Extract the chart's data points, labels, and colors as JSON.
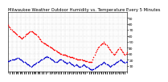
{
  "title": "Milwaukee Weather Outdoor Humidity vs. Temperature Every 5 Minutes",
  "background_color": "#ffffff",
  "grid_color": "#c8c8c8",
  "fig_bg": "#ffffff",
  "temp_color": "#ff0000",
  "humidity_color": "#0000cc",
  "ylim": [
    0,
    100
  ],
  "xlim": [
    0,
    1
  ],
  "temp_data": [
    78,
    76,
    74,
    72,
    70,
    68,
    67,
    66,
    65,
    63,
    62,
    60,
    59,
    58,
    57,
    56,
    57,
    58,
    60,
    62,
    63,
    64,
    65,
    66,
    67,
    68,
    67,
    66,
    65,
    64,
    63,
    62,
    60,
    58,
    56,
    54,
    52,
    50,
    49,
    48,
    47,
    46,
    45,
    44,
    43,
    42,
    41,
    40,
    39,
    38,
    37,
    36,
    35,
    34,
    33,
    32,
    31,
    30,
    30,
    29,
    29,
    28,
    28,
    27,
    27,
    26,
    26,
    25,
    25,
    24,
    24,
    23,
    23,
    22,
    22,
    21,
    21,
    20,
    20,
    20,
    20,
    19,
    19,
    19,
    18,
    18,
    18,
    17,
    17,
    17,
    17,
    16,
    20,
    24,
    28,
    32,
    35,
    38,
    40,
    42,
    44,
    46,
    47,
    48,
    50,
    48,
    46,
    44,
    42,
    40,
    38,
    36,
    34,
    32,
    30,
    28,
    30,
    32,
    34,
    36,
    38,
    40,
    38,
    36,
    34,
    32,
    30,
    28,
    30,
    32
  ],
  "humidity_data": [
    18,
    18,
    19,
    19,
    20,
    20,
    21,
    21,
    22,
    22,
    23,
    23,
    22,
    21,
    20,
    19,
    18,
    17,
    16,
    15,
    14,
    13,
    12,
    11,
    10,
    9,
    10,
    11,
    12,
    13,
    14,
    15,
    16,
    17,
    18,
    19,
    20,
    21,
    22,
    23,
    24,
    25,
    26,
    25,
    24,
    23,
    22,
    21,
    20,
    19,
    18,
    17,
    16,
    17,
    18,
    19,
    20,
    21,
    20,
    19,
    18,
    17,
    16,
    15,
    14,
    15,
    16,
    15,
    14,
    13,
    12,
    11,
    10,
    11,
    12,
    11,
    10,
    9,
    8,
    9,
    10,
    11,
    12,
    11,
    10,
    9,
    8,
    7,
    6,
    5,
    4,
    3,
    4,
    5,
    6,
    7,
    8,
    9,
    10,
    11,
    12,
    13,
    14,
    15,
    16,
    15,
    14,
    13,
    12,
    11,
    10,
    9,
    10,
    11,
    12,
    13,
    14,
    15,
    16,
    17,
    18,
    19,
    20,
    19,
    18,
    17,
    16,
    15,
    16,
    17
  ],
  "yticks_right": [
    10,
    20,
    30,
    40,
    50,
    60,
    70,
    80,
    90
  ],
  "ytick_labels_right": [
    "10",
    "20",
    "30",
    "40",
    "50",
    "60",
    "70",
    "80",
    "90"
  ],
  "marker_size": 1.2,
  "title_fontsize": 3.8,
  "tick_fontsize": 3.2,
  "grid_linewidth": 0.35,
  "border_color": "#000000"
}
